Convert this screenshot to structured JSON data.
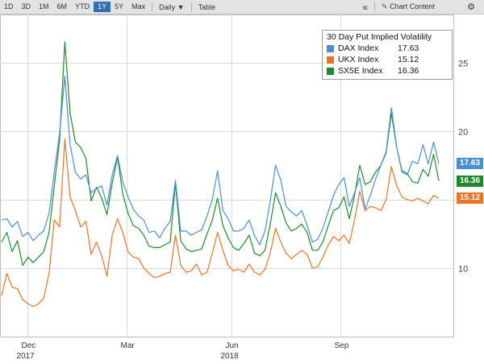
{
  "toolbar": {
    "ranges": [
      "1D",
      "3D",
      "1M",
      "6M",
      "YTD",
      "1Y",
      "5Y",
      "Max"
    ],
    "selected_range": "1Y",
    "frequency": "Daily",
    "frequency_arrow": "▼",
    "table_label": "Table",
    "collapse_glyph": "«",
    "chart_content_label": "Chart Content",
    "edit_glyph": "✎",
    "gear_glyph": "⚙"
  },
  "legend": {
    "title": "30 Day Put Implied Volatility",
    "items": [
      {
        "name": "DAX Index",
        "value": "17.63",
        "color": "#4a8fd6"
      },
      {
        "name": "UKX Index",
        "value": "15.12",
        "color": "#e8742a"
      },
      {
        "name": "SX5E Index",
        "value": "16.36",
        "color": "#1e8a2e"
      }
    ]
  },
  "last_value_tags": [
    {
      "value": "17.63",
      "color": "#4a8fd6"
    },
    {
      "value": "16.36",
      "color": "#1e8a2e"
    },
    {
      "value": "15.12",
      "color": "#e8742a"
    }
  ],
  "chart_data": {
    "type": "line",
    "title": "30 Day Put Implied Volatility",
    "x_ticks": [
      {
        "month": "Dec",
        "year": "2017",
        "t": 0.06
      },
      {
        "month": "Mar",
        "year": "",
        "t": 0.28
      },
      {
        "month": "Jun",
        "year": "2018",
        "t": 0.51
      },
      {
        "month": "Sep",
        "year": "",
        "t": 0.75
      }
    ],
    "y_ticks": [
      10,
      15,
      20,
      25
    ],
    "ylim": [
      5,
      28.5
    ],
    "grid": true,
    "series": [
      {
        "name": "DAX Index",
        "color": "#4a8fd6",
        "last": 17.63,
        "values": [
          13.5,
          13.6,
          13.0,
          13.4,
          12.3,
          12.6,
          12.0,
          12.4,
          12.7,
          14.0,
          17.0,
          19.8,
          24.0,
          19.0,
          17.0,
          16.5,
          16.8,
          15.5,
          15.8,
          16.0,
          14.6,
          16.8,
          18.2,
          16.3,
          15.2,
          14.3,
          13.8,
          13.5,
          12.6,
          12.7,
          12.2,
          12.9,
          13.4,
          16.4,
          12.7,
          12.7,
          12.4,
          12.6,
          12.8,
          13.8,
          15.0,
          17.1,
          14.2,
          13.6,
          12.7,
          12.7,
          12.9,
          13.5,
          12.4,
          11.7,
          12.7,
          14.9,
          17.5,
          16.4,
          14.5,
          14.1,
          13.8,
          14.2,
          13.1,
          11.9,
          12.1,
          12.9,
          14.1,
          15.3,
          16.1,
          16.6,
          14.5,
          15.5,
          16.6,
          14.3,
          15.3,
          16.5,
          17.5,
          18.5,
          21.7,
          18.8,
          17.0,
          16.8,
          17.8,
          17.6,
          19.0,
          17.6,
          19.2,
          17.6
        ]
      },
      {
        "name": "UKX Index",
        "color": "#e8742a",
        "last": 15.12,
        "values": [
          8.0,
          9.6,
          8.6,
          8.5,
          7.7,
          7.4,
          7.2,
          7.4,
          7.8,
          9.6,
          13.5,
          13.0,
          19.4,
          15.2,
          14.2,
          13.0,
          13.4,
          11.0,
          11.9,
          10.9,
          9.4,
          12.4,
          13.6,
          12.6,
          11.2,
          10.8,
          10.7,
          10.0,
          9.6,
          9.3,
          9.4,
          9.6,
          9.7,
          12.4,
          10.2,
          9.7,
          9.8,
          10.3,
          9.5,
          9.7,
          11.1,
          12.6,
          11.3,
          10.2,
          9.8,
          9.9,
          9.7,
          10.3,
          9.7,
          9.5,
          9.9,
          11.1,
          12.9,
          11.9,
          11.1,
          10.7,
          11.0,
          11.3,
          11.0,
          10.0,
          10.1,
          10.8,
          11.7,
          12.3,
          12.0,
          12.4,
          11.8,
          13.5,
          15.6,
          14.2,
          14.5,
          14.4,
          14.2,
          15.0,
          17.4,
          16.0,
          15.2,
          15.0,
          14.9,
          15.1,
          14.9,
          14.7,
          15.3,
          15.1
        ]
      },
      {
        "name": "SX5E Index",
        "color": "#1e8a2e",
        "last": 16.36,
        "values": [
          11.9,
          12.6,
          11.2,
          12.0,
          10.2,
          10.8,
          10.4,
          10.8,
          11.2,
          12.6,
          16.0,
          19.3,
          26.5,
          21.3,
          19.2,
          18.8,
          18.0,
          14.9,
          15.9,
          15.1,
          13.9,
          16.2,
          18.1,
          15.4,
          14.0,
          13.1,
          12.9,
          12.4,
          11.6,
          11.5,
          11.5,
          11.7,
          11.9,
          16.2,
          12.0,
          11.4,
          11.2,
          11.3,
          11.4,
          12.5,
          13.5,
          15.1,
          13.1,
          12.2,
          11.5,
          11.3,
          11.8,
          12.4,
          11.1,
          10.9,
          11.3,
          13.2,
          15.5,
          14.5,
          13.3,
          12.7,
          12.9,
          13.2,
          12.6,
          11.3,
          11.3,
          11.9,
          13.1,
          14.2,
          14.4,
          15.2,
          13.6,
          15.3,
          17.5,
          16.1,
          16.3,
          17.0,
          17.5,
          18.4,
          21.3,
          18.8,
          17.1,
          16.9,
          16.3,
          16.2,
          17.2,
          16.7,
          18.3,
          16.36
        ]
      }
    ]
  }
}
